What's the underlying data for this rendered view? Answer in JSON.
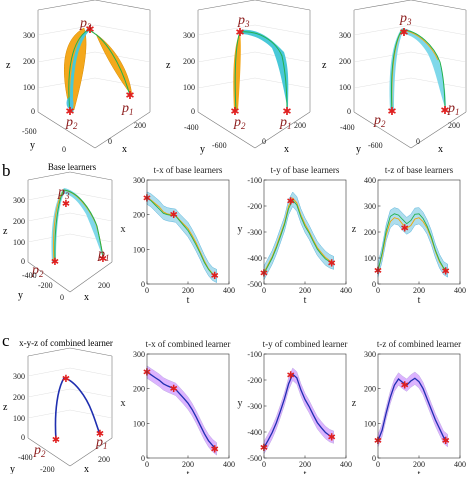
{
  "labels": {
    "row_a_top_clip": "",
    "row_b": "b",
    "row_c": "c"
  },
  "row_a": {
    "panels": [
      {
        "tick_z": [
          "300",
          "200",
          "100",
          "0"
        ],
        "tick_y": [
          "-500",
          "0"
        ],
        "tick_x": [
          "0",
          "200"
        ],
        "axis_z": "z",
        "axis_y": "y",
        "axis_x": "x",
        "points": {
          "p1": "p",
          "p1_sub": "1",
          "p2": "p",
          "p2_sub": "2",
          "p3": "p",
          "p3_sub": "3"
        }
      },
      {
        "tick_z": [
          "300",
          "200",
          "100",
          "0"
        ],
        "tick_y": [
          "-400",
          "-600"
        ],
        "tick_x": [
          "0",
          "200"
        ],
        "axis_z": "z",
        "axis_y": "y",
        "axis_x": "x",
        "points": {
          "p1": "p",
          "p1_sub": "1",
          "p2": "p",
          "p2_sub": "2",
          "p3": "p",
          "p3_sub": "3"
        }
      },
      {
        "tick_z": [
          "300",
          "200",
          "100",
          "0"
        ],
        "tick_y": [
          "-400",
          "-600"
        ],
        "tick_x": [
          "0",
          "200"
        ],
        "axis_z": "z",
        "axis_y": "y",
        "axis_x": "x",
        "points": {
          "p1": "p",
          "p1_sub": "1",
          "p2": "p",
          "p2_sub": "2",
          "p3": "p",
          "p3_sub": "3"
        }
      }
    ]
  },
  "row_b": {
    "base_3d": {
      "title": "Base learners",
      "tick_z": [
        "300",
        "200",
        "100",
        "0"
      ],
      "tick_y": [
        "-400",
        "-200",
        "0"
      ],
      "tick_x": [
        "200"
      ],
      "axis_z": "z",
      "axis_y": "y",
      "axis_x": "x",
      "points": {
        "p1": "p",
        "p1_sub": "1",
        "p2": "p",
        "p2_sub": "2",
        "p3": "p",
        "p3_sub": "3"
      }
    }
  },
  "row_c": {
    "combined_3d": {
      "title": "x-y-z of combined learner",
      "tick_z": [
        "300",
        "200",
        "100",
        "0"
      ],
      "tick_y": [
        "-400",
        "-200"
      ],
      "tick_x": [
        "200"
      ],
      "axis_z": "z",
      "axis_y": "y",
      "axis_x": "x",
      "points": {
        "p1": "p",
        "p1_sub": "1",
        "p2": "p",
        "p2_sub": "2"
      }
    }
  },
  "chart_data": [
    {
      "type": "line",
      "id": "b_tx",
      "title": "t-x of base learners",
      "xlabel": "t",
      "ylabel": "x",
      "xlim": [
        0,
        400
      ],
      "ylim": [
        0,
        300
      ],
      "xticks": [
        "0",
        "200",
        "400"
      ],
      "yticks": [
        "0",
        "100",
        "200",
        "300"
      ],
      "band_colors": [
        "#9fd8ea",
        "#3fa7d6"
      ],
      "line_colors": [
        "#f0a500",
        "#22b14c"
      ],
      "x": [
        0,
        20,
        40,
        60,
        80,
        100,
        120,
        140,
        160,
        180,
        200,
        220,
        240,
        260,
        280,
        300,
        320,
        340
      ],
      "series": [
        {
          "values": [
            248,
            242,
            232,
            222,
            208,
            202,
            200,
            198,
            184,
            172,
            160,
            140,
            118,
            92,
            66,
            44,
            30,
            24
          ]
        },
        {
          "values": [
            248,
            240,
            228,
            216,
            204,
            200,
            198,
            196,
            182,
            168,
            154,
            134,
            112,
            88,
            62,
            42,
            28,
            22
          ]
        }
      ],
      "markers": [
        [
          0,
          248
        ],
        [
          130,
          200
        ],
        [
          330,
          24
        ]
      ]
    },
    {
      "type": "line",
      "id": "b_ty",
      "title": "t-y of base learners",
      "xlabel": "t",
      "ylabel": "y",
      "xlim": [
        0,
        400
      ],
      "ylim": [
        -500,
        -100
      ],
      "xticks": [
        "0",
        "200",
        "400"
      ],
      "yticks": [
        "-100",
        "-200",
        "-300",
        "-400",
        "-500"
      ],
      "band_colors": [
        "#9fd8ea",
        "#3fa7d6"
      ],
      "line_colors": [
        "#f0a500",
        "#22b14c"
      ],
      "x": [
        0,
        20,
        40,
        60,
        80,
        100,
        120,
        140,
        160,
        180,
        200,
        220,
        240,
        260,
        280,
        300,
        320,
        340
      ],
      "series": [
        {
          "values": [
            -455,
            -425,
            -395,
            -355,
            -310,
            -265,
            -200,
            -170,
            -188,
            -235,
            -270,
            -298,
            -330,
            -360,
            -380,
            -398,
            -410,
            -418
          ]
        },
        {
          "values": [
            -460,
            -430,
            -400,
            -362,
            -318,
            -272,
            -210,
            -178,
            -196,
            -242,
            -278,
            -304,
            -336,
            -366,
            -386,
            -404,
            -414,
            -420
          ]
        }
      ],
      "markers": [
        [
          0,
          -458
        ],
        [
          130,
          -180
        ],
        [
          330,
          -420
        ]
      ]
    },
    {
      "type": "line",
      "id": "b_tz",
      "title": "t-z of base learners",
      "xlabel": "t",
      "ylabel": "z",
      "xlim": [
        0,
        400
      ],
      "ylim": [
        0,
        400
      ],
      "xticks": [
        "0",
        "200",
        "400"
      ],
      "yticks": [
        "0",
        "100",
        "200",
        "300",
        "400"
      ],
      "band_colors": [
        "#9fd8ea",
        "#3fa7d6"
      ],
      "line_colors": [
        "#f0a500",
        "#22b14c"
      ],
      "x": [
        0,
        20,
        40,
        60,
        80,
        100,
        120,
        140,
        160,
        180,
        200,
        220,
        240,
        260,
        280,
        300,
        320,
        340
      ],
      "series": [
        {
          "values": [
            55,
            110,
            190,
            240,
            255,
            250,
            230,
            215,
            225,
            250,
            255,
            240,
            215,
            175,
            125,
            85,
            60,
            50
          ]
        },
        {
          "values": [
            50,
            120,
            205,
            260,
            270,
            265,
            248,
            232,
            244,
            268,
            270,
            252,
            222,
            182,
            130,
            90,
            62,
            52
          ]
        }
      ],
      "markers": [
        [
          0,
          52
        ],
        [
          130,
          215
        ],
        [
          330,
          50
        ]
      ]
    },
    {
      "type": "line",
      "id": "c_tx",
      "title": "t-x of combined learner",
      "xlabel": "t",
      "ylabel": "x",
      "xlim": [
        0,
        400
      ],
      "ylim": [
        0,
        300
      ],
      "xticks": [
        "0",
        "200",
        "400"
      ],
      "yticks": [
        "0",
        "100",
        "200",
        "300"
      ],
      "band_colors": [
        "#d6a6ff",
        "#b39ddb"
      ],
      "line_colors": [
        "#1f2fb0"
      ],
      "x": [
        0,
        20,
        40,
        60,
        80,
        100,
        120,
        140,
        160,
        180,
        200,
        220,
        240,
        260,
        280,
        300,
        320,
        340
      ],
      "series": [
        {
          "values": [
            248,
            240,
            232,
            224,
            214,
            208,
            203,
            198,
            185,
            172,
            158,
            140,
            118,
            94,
            70,
            50,
            36,
            26
          ]
        }
      ],
      "markers": [
        [
          0,
          248
        ],
        [
          130,
          200
        ],
        [
          330,
          26
        ]
      ]
    },
    {
      "type": "line",
      "id": "c_ty",
      "title": "t-y of combined learner",
      "xlabel": "t",
      "ylabel": "y",
      "xlim": [
        0,
        400
      ],
      "ylim": [
        -500,
        -100
      ],
      "xticks": [
        "0",
        "200",
        "400"
      ],
      "yticks": [
        "-100",
        "-200",
        "-300",
        "-400",
        "-500"
      ],
      "band_colors": [
        "#d6a6ff",
        "#b39ddb"
      ],
      "line_colors": [
        "#1f2fb0"
      ],
      "x": [
        0,
        20,
        40,
        60,
        80,
        100,
        120,
        140,
        160,
        180,
        200,
        220,
        240,
        260,
        280,
        300,
        320,
        340
      ],
      "series": [
        {
          "values": [
            -460,
            -432,
            -402,
            -365,
            -320,
            -272,
            -215,
            -178,
            -192,
            -238,
            -275,
            -302,
            -334,
            -364,
            -384,
            -402,
            -414,
            -420
          ]
        }
      ],
      "markers": [
        [
          0,
          -460
        ],
        [
          130,
          -180
        ],
        [
          330,
          -420
        ]
      ]
    },
    {
      "type": "line",
      "id": "c_tz",
      "title": "t-z of combined learner",
      "xlabel": "t",
      "ylabel": "z",
      "xlim": [
        0,
        400
      ],
      "ylim": [
        0,
        300
      ],
      "xticks": [
        "0",
        "200",
        "400"
      ],
      "yticks": [
        "0",
        "100",
        "200",
        "300"
      ],
      "band_colors": [
        "#d6a6ff",
        "#b39ddb"
      ],
      "line_colors": [
        "#1f2fb0"
      ],
      "x": [
        0,
        20,
        40,
        60,
        80,
        100,
        120,
        140,
        160,
        180,
        200,
        220,
        240,
        260,
        280,
        300,
        320,
        340
      ],
      "series": [
        {
          "values": [
            50,
            80,
            130,
            175,
            210,
            228,
            218,
            210,
            222,
            230,
            220,
            200,
            170,
            140,
            110,
            85,
            60,
            50
          ]
        }
      ],
      "markers": [
        [
          0,
          50
        ],
        [
          130,
          210
        ],
        [
          330,
          50
        ]
      ]
    }
  ]
}
